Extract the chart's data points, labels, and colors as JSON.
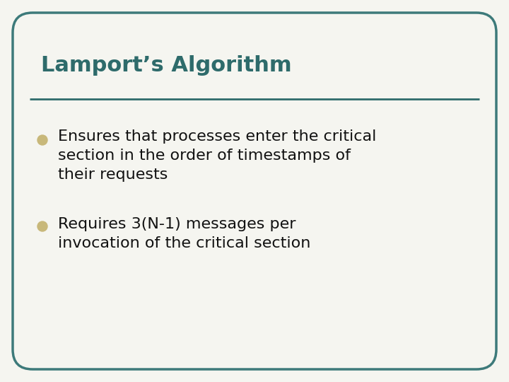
{
  "title": "Lamport’s Algorithm",
  "title_color": "#2e6b6b",
  "title_fontsize": 22,
  "title_bold": true,
  "line_color": "#2e6b6b",
  "background_color": "#f5f5f0",
  "border_color": "#3d7a7a",
  "border_linewidth": 2.5,
  "bullet_color": "#c8b87a",
  "bullet_points": [
    "Ensures that processes enter the critical\nsection in the order of timestamps of\ntheir requests",
    "Requires 3(N-1) messages per\ninvocation of the critical section"
  ],
  "bullet_fontsize": 16,
  "bullet_text_color": "#111111"
}
